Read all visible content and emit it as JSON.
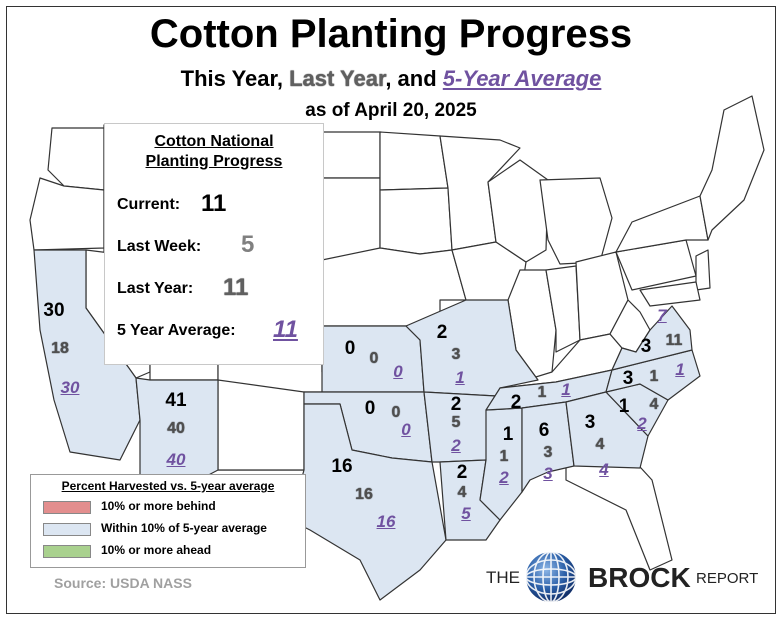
{
  "header": {
    "title": "Cotton Planting Progress",
    "subtitle_a": "This Year, ",
    "subtitle_last_year": "Last Year",
    "subtitle_b": ", and ",
    "subtitle_avg": "5-Year Average",
    "date": "as of April 20, 2025"
  },
  "national": {
    "heading_line1": "Cotton National",
    "heading_line2": "Planting Progress",
    "current_label": "Current:",
    "current_value": "11",
    "last_week_label": "Last Week:",
    "last_week_value": "5",
    "last_year_label": "Last Year:",
    "last_year_value": "11",
    "avg_label": "5 Year Average:",
    "avg_value": "11"
  },
  "states": [
    {
      "name": "California",
      "current": "30",
      "last_year": "18",
      "avg": "30"
    },
    {
      "name": "Arizona",
      "current": "41",
      "last_year": "40",
      "avg": "40"
    },
    {
      "name": "Kansas",
      "current": "0",
      "last_year": "0",
      "avg": "0"
    },
    {
      "name": "Oklahoma",
      "current": "0",
      "last_year": "0",
      "avg": "0"
    },
    {
      "name": "Texas",
      "current": "16",
      "last_year": "16",
      "avg": "16"
    },
    {
      "name": "Missouri",
      "current": "2",
      "last_year": "3",
      "avg": "1"
    },
    {
      "name": "Arkansas",
      "current": "2",
      "last_year": "5",
      "avg": "2"
    },
    {
      "name": "Louisiana",
      "current": "2",
      "last_year": "4",
      "avg": "5"
    },
    {
      "name": "Mississippi",
      "current": "1",
      "last_year": "1",
      "avg": "2"
    },
    {
      "name": "Tennessee",
      "current": "2",
      "last_year": "1",
      "avg": "1"
    },
    {
      "name": "Alabama",
      "current": "6",
      "last_year": "3",
      "avg": "3"
    },
    {
      "name": "Georgia",
      "current": "3",
      "last_year": "4",
      "avg": "4"
    },
    {
      "name": "South Carolina",
      "current": "1",
      "last_year": "4",
      "avg": "2"
    },
    {
      "name": "North Carolina",
      "current": "3",
      "last_year": "1",
      "avg": "1"
    },
    {
      "name": "Virginia",
      "current": "3",
      "last_year": "11",
      "avg": "7"
    }
  ],
  "legend": {
    "title": "Percent Harvested vs. 5-year average",
    "items": [
      {
        "label": "10% or more behind",
        "color": "#e38e8e"
      },
      {
        "label": "Within 10% of 5-year average",
        "color": "#dce6f2"
      },
      {
        "label": "10% or more ahead",
        "color": "#a9d18e"
      }
    ]
  },
  "colors": {
    "within": "#dce6f2",
    "base": "#ffffff",
    "avg_text": "#7052a0"
  },
  "source": "Source: USDA NASS",
  "logo": {
    "the": "THE",
    "brock": "BROCK",
    "report": "REPORT"
  }
}
